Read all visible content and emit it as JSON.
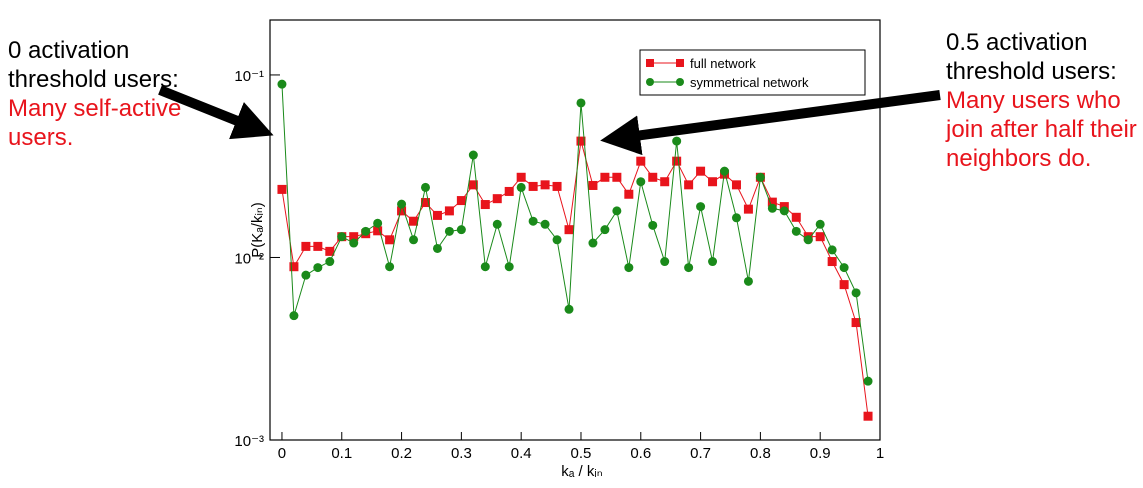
{
  "chart_data": {
    "type": "line",
    "x_label": "kₐ / kᵢₙ",
    "y_label": "P(Kₐ/kᵢₙ)",
    "x": [
      0,
      0.02,
      0.04,
      0.06,
      0.08,
      0.1,
      0.12,
      0.14,
      0.16,
      0.18,
      0.2,
      0.22,
      0.24,
      0.26,
      0.28,
      0.3,
      0.32,
      0.34,
      0.36,
      0.38,
      0.4,
      0.42,
      0.44,
      0.46,
      0.48,
      0.5,
      0.52,
      0.54,
      0.56,
      0.58,
      0.6,
      0.62,
      0.64,
      0.66,
      0.68,
      0.7,
      0.72,
      0.74,
      0.76,
      0.78,
      0.8,
      0.82,
      0.84,
      0.86,
      0.88,
      0.9,
      0.92,
      0.94,
      0.96,
      0.98
    ],
    "series": [
      {
        "name": "full network",
        "color": "#e8141c",
        "marker": "square",
        "values": [
          0.0236,
          0.0089,
          0.0115,
          0.0115,
          0.0108,
          0.013,
          0.013,
          0.0135,
          0.014,
          0.0125,
          0.018,
          0.0158,
          0.02,
          0.017,
          0.018,
          0.0205,
          0.025,
          0.0195,
          0.021,
          0.023,
          0.0275,
          0.0245,
          0.025,
          0.0245,
          0.0142,
          0.0434,
          0.0248,
          0.0275,
          0.0275,
          0.0222,
          0.0337,
          0.0275,
          0.026,
          0.0337,
          0.025,
          0.0297,
          0.026,
          0.0286,
          0.025,
          0.0184,
          0.0275,
          0.0201,
          0.019,
          0.0166,
          0.013,
          0.013,
          0.0095,
          0.0071,
          0.0044,
          0.00135
        ]
      },
      {
        "name": "symmetrical network",
        "color": "#1a8a1a",
        "marker": "circle",
        "values": [
          0.089,
          0.0048,
          0.008,
          0.0088,
          0.0095,
          0.013,
          0.012,
          0.0139,
          0.0154,
          0.0089,
          0.0196,
          0.0125,
          0.0242,
          0.0112,
          0.0139,
          0.0142,
          0.0364,
          0.0089,
          0.0152,
          0.0089,
          0.0242,
          0.0158,
          0.0152,
          0.0125,
          0.0052,
          0.0702,
          0.012,
          0.0142,
          0.018,
          0.0088,
          0.026,
          0.015,
          0.0095,
          0.0434,
          0.0088,
          0.019,
          0.0095,
          0.0297,
          0.0165,
          0.0074,
          0.0275,
          0.0186,
          0.018,
          0.0139,
          0.0125,
          0.0152,
          0.011,
          0.0088,
          0.0064,
          0.0021
        ]
      }
    ],
    "xlim": [
      -0.02,
      1
    ],
    "xticks": [
      0,
      0.1,
      0.2,
      0.3,
      0.4,
      0.5,
      0.6,
      0.7,
      0.8,
      0.9,
      1
    ],
    "ylim": [
      0.001,
      0.2
    ],
    "log_y": true,
    "yticks": [
      {
        "value": 0.001,
        "label": "10⁻³"
      },
      {
        "value": 0.01,
        "label": "10⁻²"
      },
      {
        "value": 0.1,
        "label": "10⁻¹"
      }
    ],
    "legend": "upper right",
    "annotations": [
      {
        "text": "0 activation threshold users:",
        "highlight": "Many self-active users."
      },
      {
        "text": "0.5 activation threshold users:",
        "highlight": "Many users who join after half their neighbors do."
      }
    ]
  }
}
